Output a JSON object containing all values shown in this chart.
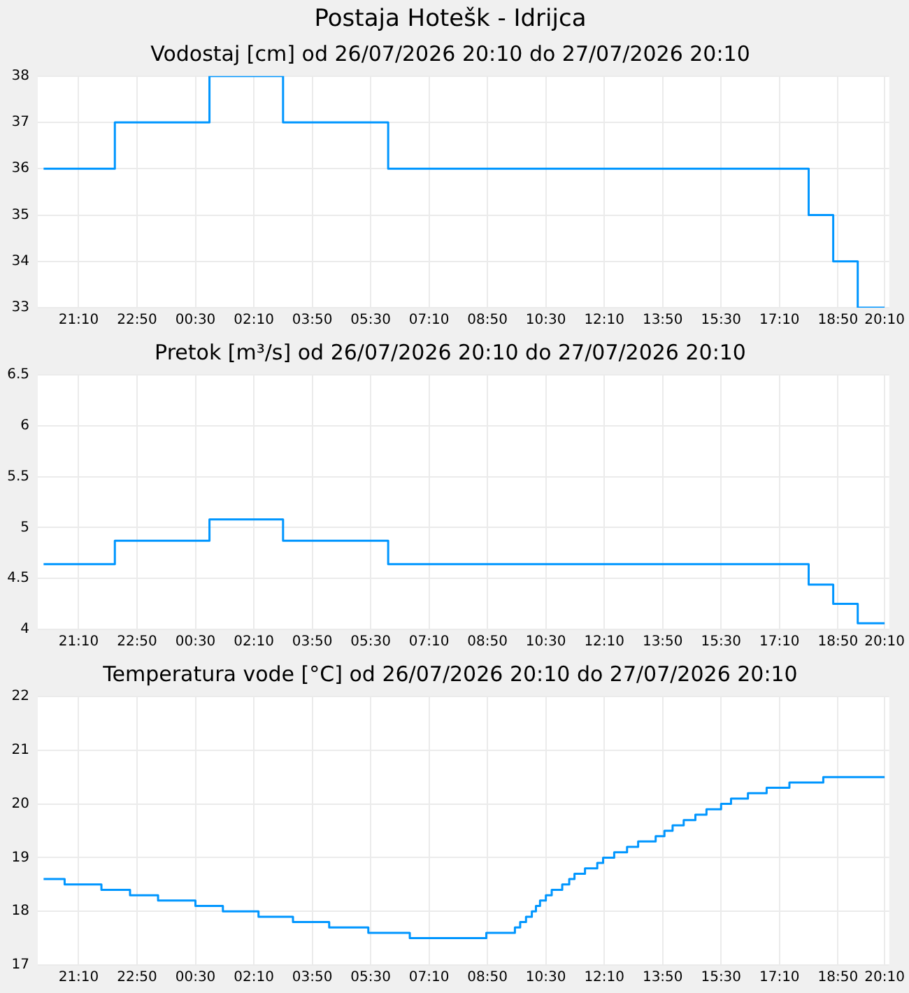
{
  "chart_data": [
    {
      "type": "step",
      "title": "Postaja Hotešk - Idrijca",
      "subtitle": "Vodostaj [cm] od 26/07/2026 20:10 do 27/07/2026 20:10",
      "color": "#0096ff",
      "grid": true,
      "x": [
        "2026-07-26T20:10",
        "2026-07-26T22:12",
        "2026-07-27T00:54",
        "2026-07-27T03:00",
        "2026-07-27T06:00",
        "2026-07-27T18:00",
        "2026-07-27T18:42",
        "2026-07-27T19:24",
        "2026-07-27T20:10"
      ],
      "values": [
        36,
        37,
        38,
        37,
        36,
        35,
        34,
        33,
        33
      ],
      "xlim": [
        "2026-07-26T20:00",
        "2026-07-27T20:18"
      ],
      "xticks": [
        {
          "value": "2026-07-26T21:10",
          "label": "21:10"
        },
        {
          "value": "2026-07-26T22:50",
          "label": "22:50"
        },
        {
          "value": "2026-07-27T00:30",
          "label": "00:30"
        },
        {
          "value": "2026-07-27T02:10",
          "label": "02:10"
        },
        {
          "value": "2026-07-27T03:50",
          "label": "03:50"
        },
        {
          "value": "2026-07-27T05:30",
          "label": "05:30"
        },
        {
          "value": "2026-07-27T07:10",
          "label": "07:10"
        },
        {
          "value": "2026-07-27T08:50",
          "label": "08:50"
        },
        {
          "value": "2026-07-27T10:30",
          "label": "10:30"
        },
        {
          "value": "2026-07-27T12:10",
          "label": "12:10"
        },
        {
          "value": "2026-07-27T13:50",
          "label": "13:50"
        },
        {
          "value": "2026-07-27T15:30",
          "label": "15:30"
        },
        {
          "value": "2026-07-27T17:10",
          "label": "17:10"
        },
        {
          "value": "2026-07-27T18:50",
          "label": "18:50"
        },
        {
          "value": "2026-07-27T20:10",
          "label": "20:10"
        }
      ],
      "ylim": [
        33,
        38
      ],
      "yticks": [
        33,
        34,
        35,
        36,
        37,
        38
      ]
    },
    {
      "type": "step",
      "title": "Pretok [m³/s] od 26/07/2026 20:10 do 27/07/2026 20:10",
      "color": "#0096ff",
      "grid": true,
      "x": [
        "2026-07-26T20:10",
        "2026-07-26T22:12",
        "2026-07-27T00:54",
        "2026-07-27T03:00",
        "2026-07-27T06:00",
        "2026-07-27T18:00",
        "2026-07-27T18:42",
        "2026-07-27T19:24",
        "2026-07-27T20:10"
      ],
      "values": [
        4.64,
        4.87,
        5.08,
        4.87,
        4.64,
        4.44,
        4.25,
        4.06,
        4.06
      ],
      "xlim": [
        "2026-07-26T20:00",
        "2026-07-27T20:18"
      ],
      "xticks": [
        {
          "value": "2026-07-26T21:10",
          "label": "21:10"
        },
        {
          "value": "2026-07-26T22:50",
          "label": "22:50"
        },
        {
          "value": "2026-07-27T00:30",
          "label": "00:30"
        },
        {
          "value": "2026-07-27T02:10",
          "label": "02:10"
        },
        {
          "value": "2026-07-27T03:50",
          "label": "03:50"
        },
        {
          "value": "2026-07-27T05:30",
          "label": "05:30"
        },
        {
          "value": "2026-07-27T07:10",
          "label": "07:10"
        },
        {
          "value": "2026-07-27T08:50",
          "label": "08:50"
        },
        {
          "value": "2026-07-27T10:30",
          "label": "10:30"
        },
        {
          "value": "2026-07-27T12:10",
          "label": "12:10"
        },
        {
          "value": "2026-07-27T13:50",
          "label": "13:50"
        },
        {
          "value": "2026-07-27T15:30",
          "label": "15:30"
        },
        {
          "value": "2026-07-27T17:10",
          "label": "17:10"
        },
        {
          "value": "2026-07-27T18:50",
          "label": "18:50"
        },
        {
          "value": "2026-07-27T20:10",
          "label": "20:10"
        }
      ],
      "ylim": [
        4,
        6.5
      ],
      "yticks": [
        4,
        4.5,
        5,
        5.5,
        6,
        6.5
      ]
    },
    {
      "type": "step",
      "title": "Temperatura vode [°C] od 26/07/2026 20:10 do 27/07/2026 20:10",
      "color": "#0096ff",
      "grid": true,
      "x": [
        "2026-07-26T20:10",
        "2026-07-26T20:46",
        "2026-07-26T21:49",
        "2026-07-26T22:38",
        "2026-07-26T23:26",
        "2026-07-27T00:30",
        "2026-07-27T01:17",
        "2026-07-27T02:18",
        "2026-07-27T03:17",
        "2026-07-27T04:19",
        "2026-07-27T05:26",
        "2026-07-27T06:37",
        "2026-07-27T08:48",
        "2026-07-27T09:37",
        "2026-07-27T09:46",
        "2026-07-27T09:56",
        "2026-07-27T10:06",
        "2026-07-27T10:13",
        "2026-07-27T10:20",
        "2026-07-27T10:30",
        "2026-07-27T10:40",
        "2026-07-27T10:58",
        "2026-07-27T11:10",
        "2026-07-27T11:19",
        "2026-07-27T11:37",
        "2026-07-27T11:58",
        "2026-07-27T12:08",
        "2026-07-27T12:27",
        "2026-07-27T12:49",
        "2026-07-27T13:08",
        "2026-07-27T13:38",
        "2026-07-27T13:53",
        "2026-07-27T14:07",
        "2026-07-27T14:26",
        "2026-07-27T14:46",
        "2026-07-27T15:05",
        "2026-07-27T15:30",
        "2026-07-27T15:47",
        "2026-07-27T16:16",
        "2026-07-27T16:48",
        "2026-07-27T17:27",
        "2026-07-27T18:25",
        "2026-07-27T20:10"
      ],
      "values": [
        18.6,
        18.5,
        18.4,
        18.3,
        18.2,
        18.1,
        18.0,
        17.9,
        17.8,
        17.7,
        17.6,
        17.5,
        17.6,
        17.7,
        17.8,
        17.9,
        18.0,
        18.1,
        18.2,
        18.3,
        18.4,
        18.5,
        18.6,
        18.7,
        18.8,
        18.9,
        19.0,
        19.1,
        19.2,
        19.3,
        19.4,
        19.5,
        19.6,
        19.7,
        19.8,
        19.9,
        20.0,
        20.1,
        20.2,
        20.3,
        20.4,
        20.5,
        20.5
      ],
      "xlim": [
        "2026-07-26T20:00",
        "2026-07-27T20:18"
      ],
      "xticks": [
        {
          "value": "2026-07-26T21:10",
          "label": "21:10"
        },
        {
          "value": "2026-07-26T22:50",
          "label": "22:50"
        },
        {
          "value": "2026-07-27T00:30",
          "label": "00:30"
        },
        {
          "value": "2026-07-27T02:10",
          "label": "02:10"
        },
        {
          "value": "2026-07-27T03:50",
          "label": "03:50"
        },
        {
          "value": "2026-07-27T05:30",
          "label": "05:30"
        },
        {
          "value": "2026-07-27T07:10",
          "label": "07:10"
        },
        {
          "value": "2026-07-27T08:50",
          "label": "08:50"
        },
        {
          "value": "2026-07-27T10:30",
          "label": "10:30"
        },
        {
          "value": "2026-07-27T12:10",
          "label": "12:10"
        },
        {
          "value": "2026-07-27T13:50",
          "label": "13:50"
        },
        {
          "value": "2026-07-27T15:30",
          "label": "15:30"
        },
        {
          "value": "2026-07-27T17:10",
          "label": "17:10"
        },
        {
          "value": "2026-07-27T18:50",
          "label": "18:50"
        },
        {
          "value": "2026-07-27T20:10",
          "label": "20:10"
        }
      ],
      "ylim": [
        17,
        22
      ],
      "yticks": [
        17,
        18,
        19,
        20,
        21,
        22
      ]
    }
  ]
}
